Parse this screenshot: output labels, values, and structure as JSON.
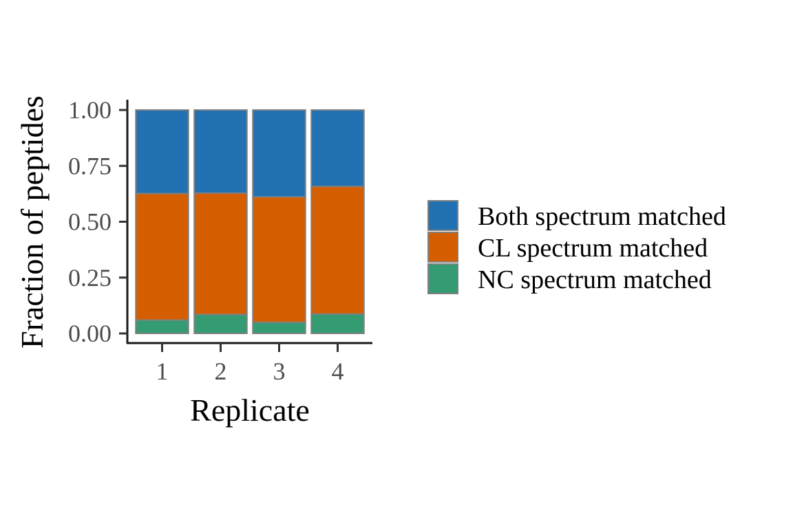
{
  "chart_data": {
    "type": "bar",
    "stacked": true,
    "categories": [
      "1",
      "2",
      "3",
      "4"
    ],
    "series": [
      {
        "name": "NC spectrum matched",
        "color": "#359B73",
        "values": [
          0.06,
          0.085,
          0.05,
          0.087
        ]
      },
      {
        "name": "CL spectrum matched",
        "color": "#D55E00",
        "values": [
          0.566,
          0.543,
          0.561,
          0.571
        ]
      },
      {
        "name": "Both spectrum matched",
        "color": "#2271B2",
        "values": [
          0.374,
          0.372,
          0.389,
          0.342
        ]
      }
    ],
    "legend_order": [
      "Both spectrum matched",
      "CL spectrum matched",
      "NC spectrum matched"
    ],
    "legend_position": "right",
    "xlabel": "Replicate",
    "ylabel": "Fraction of peptides",
    "ylim": [
      0,
      1
    ],
    "yticks": [
      0,
      0.25,
      0.5,
      0.75,
      1
    ],
    "ytick_labels": [
      "0.00",
      "0.25",
      "0.50",
      "0.75",
      "1.00"
    ],
    "grid": false,
    "bar_outline_color": "#808080"
  }
}
